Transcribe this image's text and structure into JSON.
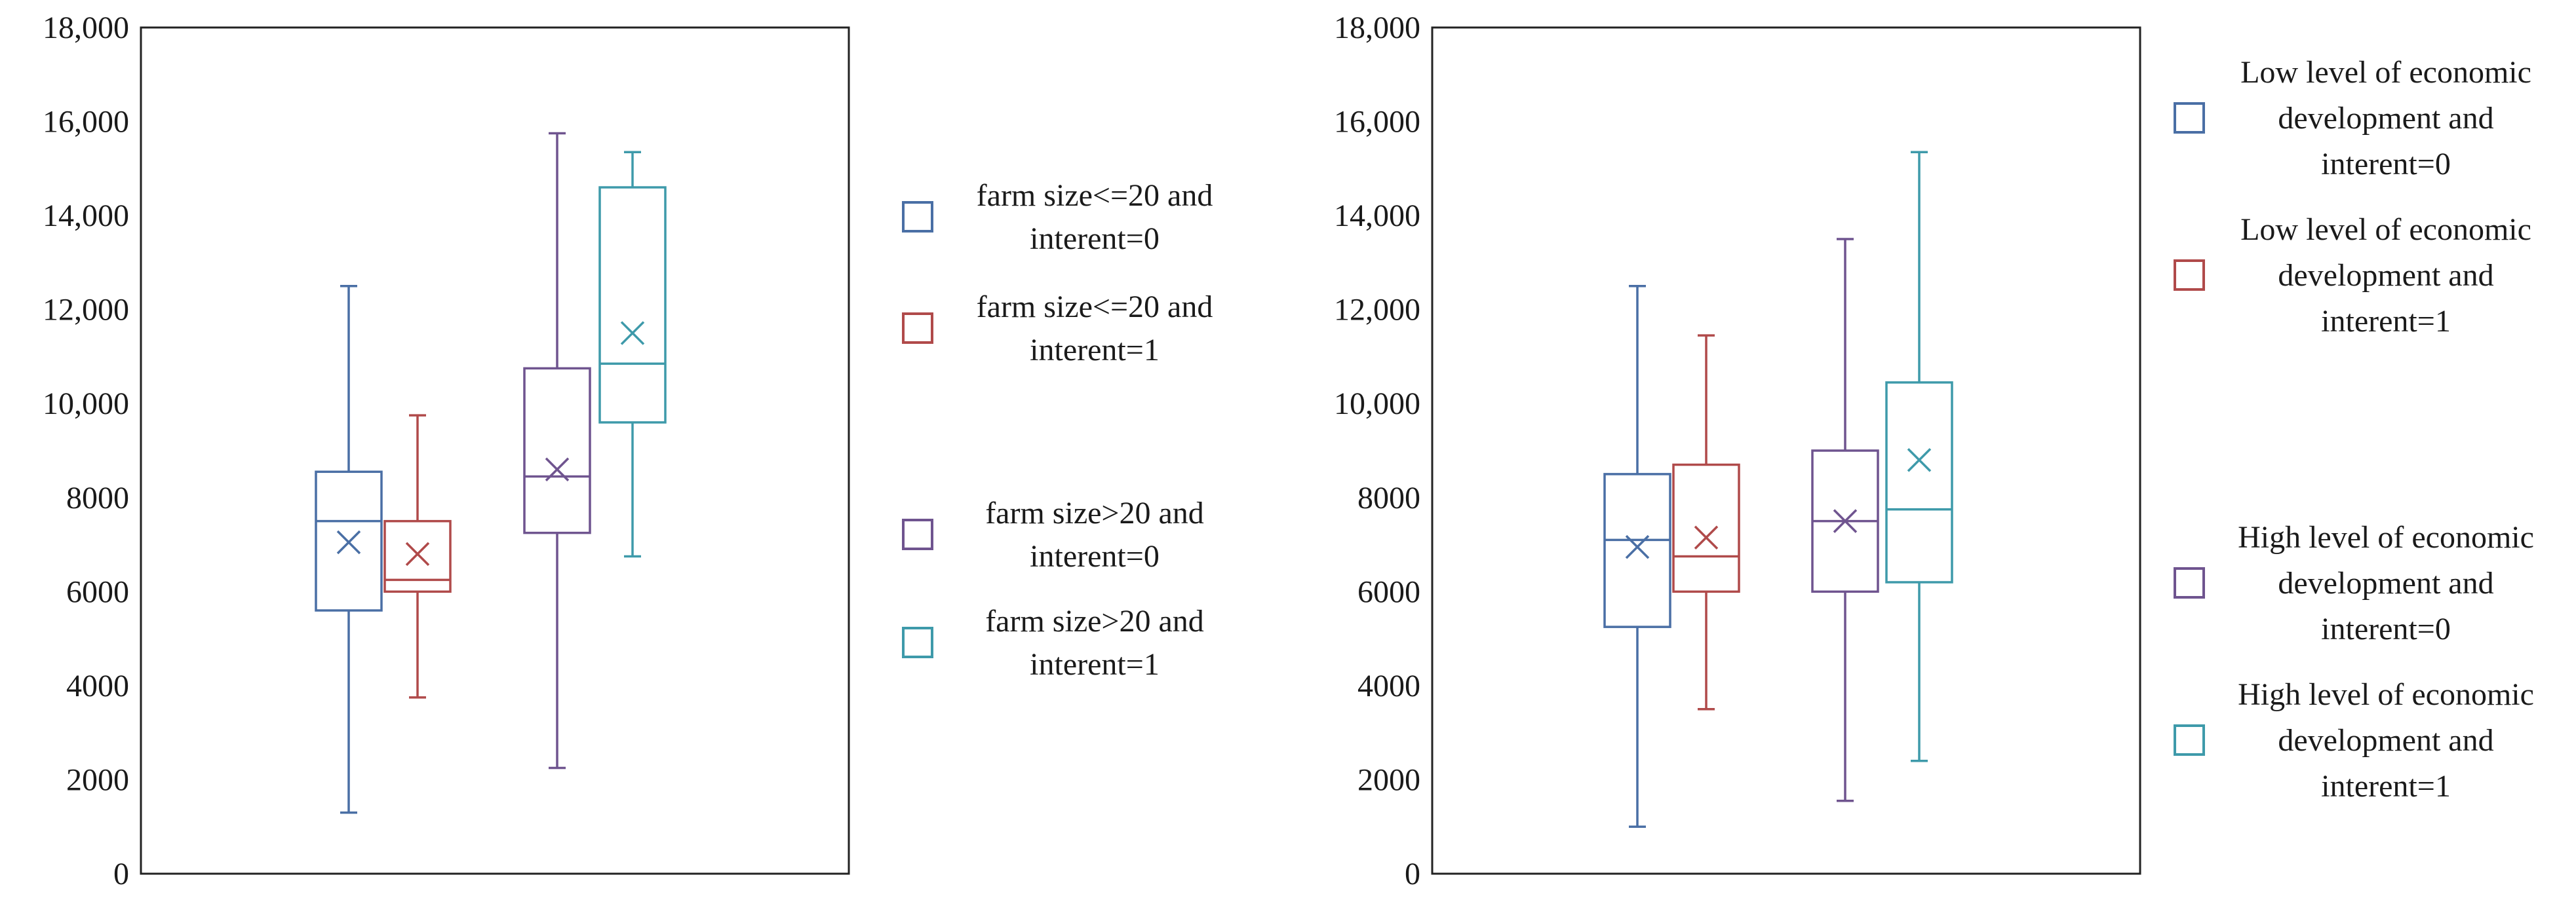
{
  "chart_data": [
    {
      "type": "box",
      "title": "",
      "xlabel": "",
      "ylabel": "",
      "ylim": [
        0,
        18000
      ],
      "y_ticks": [
        0,
        2000,
        4000,
        6000,
        8000,
        10000,
        12000,
        14000,
        16000,
        18000
      ],
      "y_tick_labels": [
        "0",
        "2000",
        "4000",
        "6000",
        "8000",
        "10,000",
        "12,000",
        "14,000",
        "16,000",
        "18,000"
      ],
      "grid": false,
      "legend_position": "right",
      "series": [
        {
          "name_lines": [
            "farm size<=20 and",
            "interent=0"
          ],
          "color": "#4A6FA5",
          "min": 1300,
          "q1": 5600,
          "median": 7500,
          "q3": 8550,
          "max": 12500,
          "mean": 7050
        },
        {
          "name_lines": [
            "farm size<=20 and",
            "interent=1"
          ],
          "color": "#B04A4A",
          "min": 3750,
          "q1": 6000,
          "median": 6250,
          "q3": 7500,
          "max": 9750,
          "mean": 6800
        },
        {
          "name_lines": [
            "farm size>20 and",
            "interent=0"
          ],
          "color": "#6F548F",
          "min": 2250,
          "q1": 7250,
          "median": 8450,
          "q3": 10750,
          "max": 15750,
          "mean": 8600
        },
        {
          "name_lines": [
            "farm size>20 and",
            "interent=1"
          ],
          "color": "#3E9AAA",
          "min": 6750,
          "q1": 9600,
          "median": 10850,
          "q3": 14600,
          "max": 15350,
          "mean": 11500
        }
      ]
    },
    {
      "type": "box",
      "title": "",
      "xlabel": "",
      "ylabel": "",
      "ylim": [
        0,
        18000
      ],
      "y_ticks": [
        0,
        2000,
        4000,
        6000,
        8000,
        10000,
        12000,
        14000,
        16000,
        18000
      ],
      "y_tick_labels": [
        "0",
        "2000",
        "4000",
        "6000",
        "8000",
        "10,000",
        "12,000",
        "14,000",
        "16,000",
        "18,000"
      ],
      "grid": false,
      "legend_position": "right",
      "series": [
        {
          "name_lines": [
            "Low level of economic",
            "development and",
            "interent=0"
          ],
          "color": "#4A6FA5",
          "min": 1000,
          "q1": 5250,
          "median": 7100,
          "q3": 8500,
          "max": 12500,
          "mean": 6950
        },
        {
          "name_lines": [
            "Low level of economic",
            "development and",
            "interent=1"
          ],
          "color": "#B04A4A",
          "min": 3500,
          "q1": 6000,
          "median": 6750,
          "q3": 8700,
          "max": 11450,
          "mean": 7150
        },
        {
          "name_lines": [
            "High level of economic",
            "development and",
            "interent=0"
          ],
          "color": "#6F548F",
          "min": 1550,
          "q1": 6000,
          "median": 7500,
          "q3": 9000,
          "max": 13500,
          "mean": 7500
        },
        {
          "name_lines": [
            "High level of economic",
            "development and",
            "interent=1"
          ],
          "color": "#3E9AAA",
          "min": 2400,
          "q1": 6200,
          "median": 7750,
          "q3": 10450,
          "max": 15350,
          "mean": 8800
        }
      ]
    }
  ]
}
